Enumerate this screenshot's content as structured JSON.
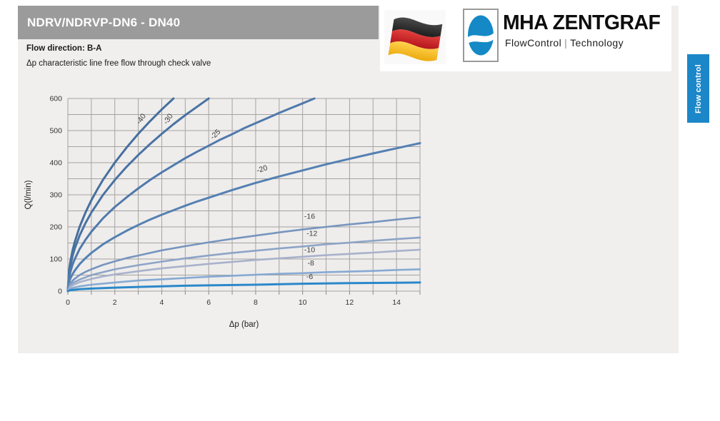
{
  "header": {
    "title": "NDRV/NDRVP-DN6 - DN40"
  },
  "intro": {
    "flow_direction": "Flow direction: B-A",
    "description": "Δp characteristic line free flow through check valve"
  },
  "logo": {
    "brand": "MHA ZENTGRAF",
    "tagline_left": "FlowControl",
    "separator": "|",
    "tagline_right": "Technology",
    "mark_color": "#1489c6",
    "flag_colors": {
      "black": "#2e2e2e",
      "red": "#cf2027",
      "gold": "#f5b915"
    }
  },
  "side_tab": {
    "label": "Flow control",
    "color": "#1c87c8"
  },
  "chart_data": {
    "type": "line",
    "title": "",
    "xlabel": "Δp (bar)",
    "ylabel": "Q(l/min)",
    "xlim": [
      0,
      15
    ],
    "ylim": [
      0,
      600
    ],
    "x_ticks": [
      0,
      2,
      4,
      6,
      8,
      10,
      12,
      14
    ],
    "y_ticks": [
      0,
      100,
      200,
      300,
      400,
      500,
      600
    ],
    "x_grid_step": 1,
    "y_grid_step": 50,
    "grid": true,
    "legend_position": "inline-labels",
    "grid_color": "#a5a3a1",
    "series": [
      {
        "name": "-40",
        "color": "#466f9e",
        "width": 3,
        "label_x": 3.2,
        "label_y": 532,
        "label_rot": -55,
        "points": [
          [
            0,
            0
          ],
          [
            0.05,
            63
          ],
          [
            0.1,
            89
          ],
          [
            0.2,
            127
          ],
          [
            0.3,
            155
          ],
          [
            0.5,
            200
          ],
          [
            0.75,
            245
          ],
          [
            1,
            283
          ],
          [
            1.25,
            316
          ],
          [
            1.5,
            347
          ],
          [
            2,
            400
          ],
          [
            2.5,
            447
          ],
          [
            3,
            490
          ],
          [
            3.5,
            529
          ],
          [
            4,
            566
          ],
          [
            4.5,
            600
          ]
        ]
      },
      {
        "name": "-30",
        "color": "#4a72a2",
        "width": 3,
        "label_x": 4.35,
        "label_y": 532,
        "label_rot": -55,
        "points": [
          [
            0,
            0
          ],
          [
            0.05,
            55
          ],
          [
            0.1,
            77
          ],
          [
            0.2,
            110
          ],
          [
            0.3,
            134
          ],
          [
            0.5,
            173
          ],
          [
            0.75,
            212
          ],
          [
            1,
            245
          ],
          [
            1.5,
            300
          ],
          [
            2,
            346
          ],
          [
            2.5,
            387
          ],
          [
            3,
            424
          ],
          [
            3.5,
            458
          ],
          [
            4,
            490
          ],
          [
            4.5,
            520
          ],
          [
            5,
            548
          ],
          [
            5.5,
            574
          ],
          [
            6,
            600
          ]
        ]
      },
      {
        "name": "-25",
        "color": "#5079ab",
        "width": 3,
        "label_x": 6.35,
        "label_y": 483,
        "label_rot": -43,
        "points": [
          [
            0,
            0
          ],
          [
            0.05,
            41
          ],
          [
            0.1,
            58
          ],
          [
            0.2,
            83
          ],
          [
            0.3,
            101
          ],
          [
            0.5,
            131
          ],
          [
            0.75,
            160
          ],
          [
            1,
            185
          ],
          [
            1.5,
            227
          ],
          [
            2,
            262
          ],
          [
            2.5,
            292
          ],
          [
            3,
            320
          ],
          [
            3.5,
            346
          ],
          [
            4,
            370
          ],
          [
            4.5,
            392
          ],
          [
            5,
            414
          ],
          [
            5.5,
            434
          ],
          [
            6,
            453
          ],
          [
            6.5,
            472
          ],
          [
            7,
            489
          ],
          [
            7.5,
            507
          ],
          [
            8,
            523
          ],
          [
            8.5,
            539
          ],
          [
            9,
            555
          ],
          [
            9.5,
            570
          ],
          [
            10,
            585
          ],
          [
            10.5,
            600
          ]
        ]
      },
      {
        "name": "-20",
        "color": "#5580b2",
        "width": 3,
        "label_x": 8.3,
        "label_y": 373,
        "label_rot": -17,
        "points": [
          [
            0,
            0
          ],
          [
            0.05,
            27
          ],
          [
            0.1,
            38
          ],
          [
            0.2,
            53
          ],
          [
            0.3,
            65
          ],
          [
            0.5,
            84
          ],
          [
            0.75,
            103
          ],
          [
            1,
            119
          ],
          [
            1.5,
            146
          ],
          [
            2,
            168
          ],
          [
            2.5,
            188
          ],
          [
            3,
            206
          ],
          [
            3.5,
            223
          ],
          [
            4,
            238
          ],
          [
            4.5,
            252
          ],
          [
            5,
            266
          ],
          [
            5.5,
            279
          ],
          [
            6,
            291
          ],
          [
            7,
            315
          ],
          [
            8,
            337
          ],
          [
            9,
            357
          ],
          [
            10,
            376
          ],
          [
            11,
            395
          ],
          [
            12,
            412
          ],
          [
            13,
            429
          ],
          [
            14,
            445
          ],
          [
            15,
            461
          ]
        ]
      },
      {
        "name": "-16",
        "color": "#7795be",
        "width": 2.6,
        "label_x": 10.3,
        "label_y": 226,
        "label_rot": 0,
        "points": [
          [
            0,
            0
          ],
          [
            0.1,
            24
          ],
          [
            0.25,
            36
          ],
          [
            0.5,
            50
          ],
          [
            0.75,
            60
          ],
          [
            1,
            68
          ],
          [
            1.5,
            82
          ],
          [
            2,
            93
          ],
          [
            2.5,
            103
          ],
          [
            3,
            111
          ],
          [
            4,
            127
          ],
          [
            5,
            140
          ],
          [
            6,
            152
          ],
          [
            7,
            163
          ],
          [
            8,
            173
          ],
          [
            9,
            183
          ],
          [
            10,
            192
          ],
          [
            11,
            200
          ],
          [
            12,
            208
          ],
          [
            13,
            215
          ],
          [
            14,
            223
          ],
          [
            15,
            230
          ]
        ]
      },
      {
        "name": "-12",
        "color": "#8da4c6",
        "width": 2.6,
        "label_x": 10.4,
        "label_y": 172,
        "label_rot": 0,
        "points": [
          [
            0,
            0
          ],
          [
            0.1,
            18
          ],
          [
            0.25,
            27
          ],
          [
            0.5,
            36
          ],
          [
            1,
            50
          ],
          [
            1.5,
            59
          ],
          [
            2,
            68
          ],
          [
            3,
            81
          ],
          [
            4,
            92
          ],
          [
            5,
            102
          ],
          [
            6,
            111
          ],
          [
            7,
            119
          ],
          [
            8,
            126
          ],
          [
            9,
            133
          ],
          [
            10,
            139
          ],
          [
            11,
            146
          ],
          [
            12,
            151
          ],
          [
            13,
            157
          ],
          [
            14,
            162
          ],
          [
            15,
            167
          ]
        ]
      },
      {
        "name": "-10",
        "color": "#a9b2cb",
        "width": 2.6,
        "label_x": 10.3,
        "label_y": 121,
        "label_rot": 0,
        "points": [
          [
            0,
            0
          ],
          [
            0.1,
            13
          ],
          [
            0.25,
            20
          ],
          [
            0.5,
            28
          ],
          [
            1,
            38
          ],
          [
            1.5,
            46
          ],
          [
            2,
            52
          ],
          [
            3,
            62
          ],
          [
            4,
            71
          ],
          [
            5,
            78
          ],
          [
            6,
            85
          ],
          [
            7,
            91
          ],
          [
            8,
            97
          ],
          [
            9,
            102
          ],
          [
            10,
            107
          ],
          [
            11,
            112
          ],
          [
            12,
            116
          ],
          [
            13,
            120
          ],
          [
            14,
            125
          ],
          [
            15,
            129
          ]
        ]
      },
      {
        "name": "-8",
        "color": "#87a9d3",
        "width": 2.6,
        "label_x": 10.35,
        "label_y": 80,
        "label_rot": 0,
        "points": [
          [
            0,
            0
          ],
          [
            0.1,
            7
          ],
          [
            0.25,
            11
          ],
          [
            0.5,
            15
          ],
          [
            1,
            20
          ],
          [
            2,
            27
          ],
          [
            3,
            33
          ],
          [
            4,
            37
          ],
          [
            5,
            41
          ],
          [
            6,
            45
          ],
          [
            7,
            48
          ],
          [
            8,
            51
          ],
          [
            9,
            54
          ],
          [
            10,
            56
          ],
          [
            11,
            59
          ],
          [
            12,
            61
          ],
          [
            13,
            63
          ],
          [
            14,
            66
          ],
          [
            15,
            68
          ]
        ]
      },
      {
        "name": "-6",
        "color": "#2b88c9",
        "width": 3,
        "label_x": 10.3,
        "label_y": 38,
        "label_rot": 0,
        "points": [
          [
            0,
            0
          ],
          [
            0.1,
            3
          ],
          [
            0.5,
            6
          ],
          [
            1,
            8
          ],
          [
            2,
            11
          ],
          [
            3,
            13
          ],
          [
            4,
            15
          ],
          [
            5,
            17
          ],
          [
            6,
            18
          ],
          [
            8,
            20
          ],
          [
            10,
            23
          ],
          [
            12,
            25
          ],
          [
            14,
            26
          ],
          [
            15,
            27
          ]
        ]
      }
    ]
  }
}
